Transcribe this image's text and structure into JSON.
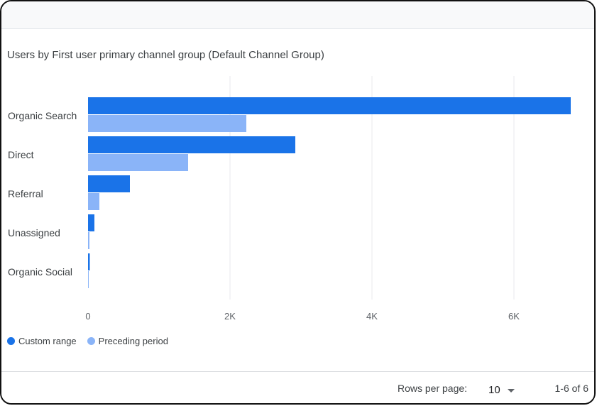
{
  "chart_data": {
    "type": "bar",
    "orientation": "horizontal",
    "title": "Users by First user primary channel group (Default Channel Group)",
    "categories": [
      "Organic Search",
      "Direct",
      "Referral",
      "Unassigned",
      "Organic Social"
    ],
    "series": [
      {
        "name": "Custom range",
        "values": [
          6800,
          2920,
          590,
          90,
          25
        ]
      },
      {
        "name": "Preceding period",
        "values": [
          2230,
          1410,
          160,
          20,
          5
        ]
      }
    ],
    "xlim": [
      0,
      7000
    ],
    "xticks": [
      0,
      2000,
      4000,
      6000
    ],
    "xticklabels": [
      "0",
      "2K",
      "4K",
      "6K"
    ],
    "grid": true,
    "legend": "bottom-left"
  },
  "legend": {
    "items": [
      {
        "label": "Custom range",
        "color": "#1a73e8"
      },
      {
        "label": "Preceding period",
        "color": "#8ab4f8"
      }
    ]
  },
  "footer": {
    "rows_per_page_label": "Rows per page:",
    "rows_per_page_value": "10",
    "page_range": "1-6 of 6"
  },
  "colors": {
    "grid": "#e8eaed",
    "primary": "#1a73e8",
    "secondary": "#8ab4f8"
  }
}
